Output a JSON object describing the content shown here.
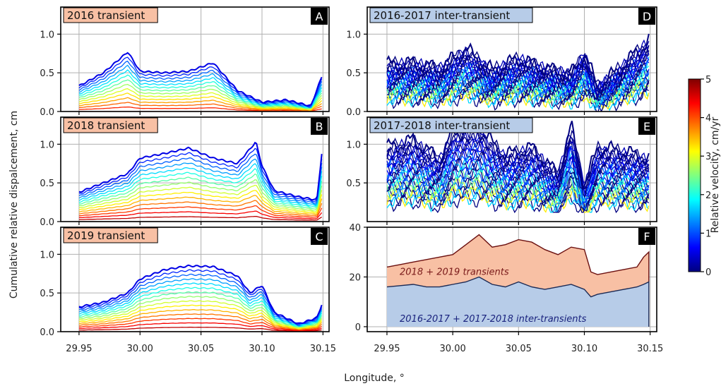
{
  "figure": {
    "xlabel": "Longitude, °",
    "ylabel": "Cumulative relative dispalcement, cm",
    "colorbar": {
      "label": "Relative velocity, cm/yr",
      "ticks": [
        "0",
        "1",
        "2",
        "3",
        "4",
        "5"
      ],
      "range": [
        0,
        5
      ],
      "colormap": "jet"
    },
    "x_ticks": [
      "29.95",
      "30.00",
      "30.05",
      "30.10",
      "30.15"
    ],
    "xlim": [
      29.935,
      30.155
    ]
  },
  "chart_data": [
    {
      "panel": "A",
      "type": "line",
      "title": "2016 transient",
      "title_bg": "#f8c0a4",
      "ylim": [
        0,
        1.35
      ],
      "y_ticks": [
        "0.0",
        "0.5",
        "1.0"
      ],
      "x": [
        29.95,
        29.97,
        29.99,
        30.0,
        30.02,
        30.04,
        30.06,
        30.08,
        30.1,
        30.12,
        30.14,
        30.149
      ],
      "series_profile": [
        0.33,
        0.5,
        0.77,
        0.52,
        0.5,
        0.52,
        0.63,
        0.27,
        0.12,
        0.15,
        0.07,
        0.45
      ],
      "curve_count": 14,
      "velocity_range": [
        0.5,
        4.5
      ]
    },
    {
      "panel": "B",
      "type": "line",
      "title": "2018 transient",
      "title_bg": "#f8c0a4",
      "ylim": [
        0,
        1.35
      ],
      "y_ticks": [
        "0.0",
        "0.5",
        "1.0"
      ],
      "x": [
        29.95,
        29.97,
        29.99,
        30.0,
        30.02,
        30.04,
        30.06,
        30.08,
        30.095,
        30.1,
        30.11,
        30.13,
        30.145,
        30.149
      ],
      "series_profile": [
        0.38,
        0.5,
        0.62,
        0.82,
        0.88,
        0.95,
        0.82,
        0.75,
        1.03,
        0.72,
        0.4,
        0.32,
        0.28,
        0.88
      ],
      "curve_count": 16,
      "velocity_range": [
        0.5,
        5.0
      ]
    },
    {
      "panel": "C",
      "type": "line",
      "title": "2019 transient",
      "title_bg": "#f8c0a4",
      "ylim": [
        0,
        1.35
      ],
      "y_ticks": [
        "0.0",
        "0.5",
        "1.0"
      ],
      "x": [
        29.95,
        29.97,
        29.99,
        30.0,
        30.02,
        30.04,
        30.06,
        30.08,
        30.09,
        30.1,
        30.11,
        30.13,
        30.145,
        30.149
      ],
      "series_profile": [
        0.32,
        0.38,
        0.5,
        0.68,
        0.8,
        0.85,
        0.84,
        0.72,
        0.5,
        0.6,
        0.25,
        0.1,
        0.18,
        0.35
      ],
      "curve_count": 16,
      "velocity_range": [
        0.5,
        5.0
      ]
    },
    {
      "panel": "D",
      "type": "line",
      "title": "2016-2017 inter-transient",
      "title_bg": "#b7cce8",
      "ylim": [
        0,
        1.35
      ],
      "y_ticks": [
        "0.0",
        "0.5",
        "1.0"
      ],
      "x": [
        29.95,
        29.97,
        29.99,
        30.01,
        30.03,
        30.05,
        30.07,
        30.09,
        30.1,
        30.11,
        30.13,
        30.149
      ],
      "series_profile": [
        0.6,
        0.62,
        0.55,
        0.8,
        0.52,
        0.68,
        0.55,
        0.48,
        0.75,
        0.3,
        0.6,
        0.92
      ],
      "curve_count": 26,
      "velocity_range": [
        0.0,
        3.5
      ]
    },
    {
      "panel": "E",
      "type": "line",
      "title": "2017-2018 inter-transient",
      "title_bg": "#b7cce8",
      "ylim": [
        0,
        1.35
      ],
      "y_ticks": [
        "0.5",
        "1.0"
      ],
      "x": [
        29.95,
        29.97,
        29.99,
        30.0,
        30.02,
        30.04,
        30.06,
        30.08,
        30.09,
        30.1,
        30.11,
        30.13,
        30.149
      ],
      "series_profile": [
        0.95,
        1.05,
        0.8,
        1.15,
        1.18,
        0.85,
        0.95,
        0.6,
        1.23,
        0.45,
        0.95,
        0.9,
        0.8
      ],
      "curve_count": 26,
      "velocity_range": [
        0.0,
        3.5
      ]
    },
    {
      "panel": "F",
      "type": "area",
      "ylim": [
        -2,
        40
      ],
      "y_ticks": [
        "0",
        "20",
        "40"
      ],
      "series": [
        {
          "name": "2018 + 2019 transients",
          "color": "#f8c0a4",
          "edge": "#6b1010",
          "label_color": "#7a1a1a",
          "x": [
            29.95,
            29.96,
            29.97,
            29.98,
            29.99,
            30.0,
            30.01,
            30.02,
            30.03,
            30.04,
            30.05,
            30.06,
            30.07,
            30.08,
            30.09,
            30.1,
            30.105,
            30.11,
            30.12,
            30.13,
            30.14,
            30.145,
            30.149
          ],
          "values": [
            24,
            25,
            26,
            27,
            28,
            29,
            33,
            37,
            32,
            33,
            35,
            34,
            31,
            29,
            32,
            31,
            22,
            21,
            22,
            23,
            24,
            28,
            30
          ]
        },
        {
          "name": "2016-2017 + 2017-2018 inter-transients",
          "color": "#b7cce8",
          "edge": "#1b2a55",
          "label_color": "#1a237e",
          "x": [
            29.95,
            29.96,
            29.97,
            29.98,
            29.99,
            30.0,
            30.01,
            30.02,
            30.03,
            30.04,
            30.05,
            30.06,
            30.07,
            30.08,
            30.09,
            30.1,
            30.105,
            30.11,
            30.12,
            30.13,
            30.14,
            30.145,
            30.149
          ],
          "values": [
            16,
            16.5,
            17,
            16,
            16,
            17,
            18,
            20,
            17,
            16,
            18,
            16,
            15,
            16,
            17,
            15,
            12,
            13,
            14,
            15,
            16,
            17,
            18
          ]
        }
      ]
    }
  ]
}
